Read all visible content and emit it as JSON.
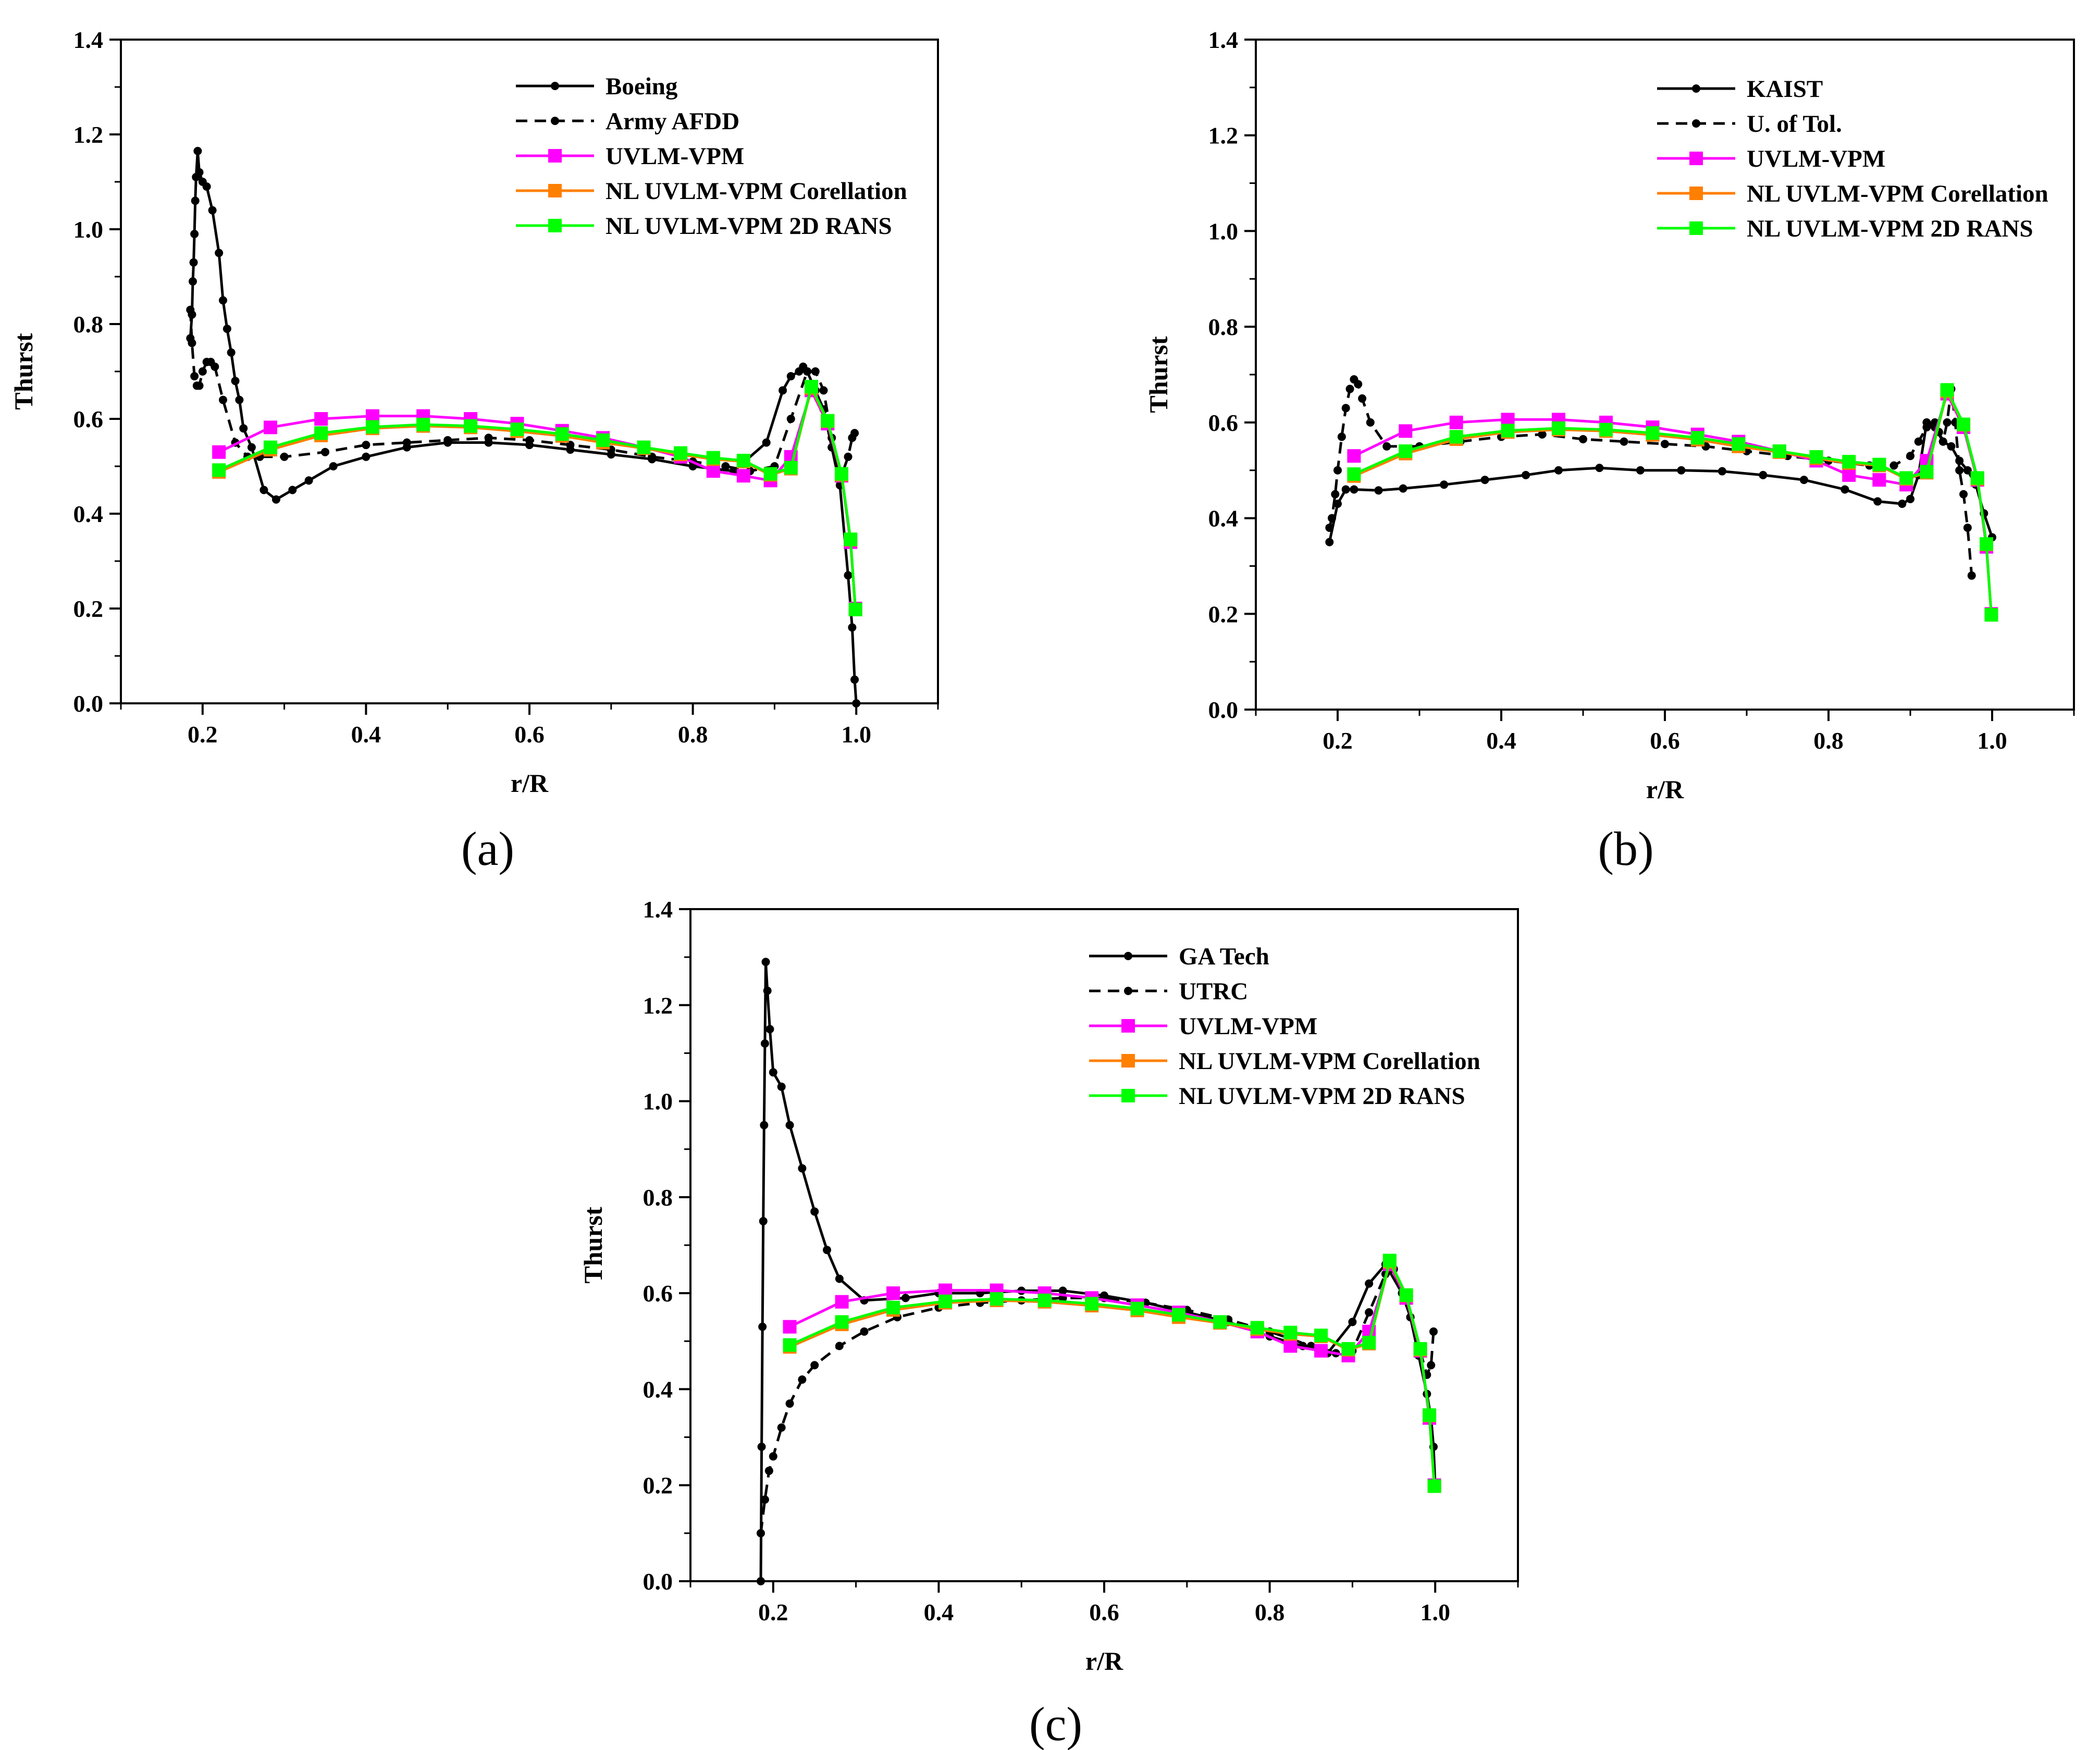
{
  "figure": {
    "panels": [
      "(a)",
      "(b)",
      "(c)"
    ]
  },
  "colors": {
    "uvlm_vpm": "#ff00ff",
    "nl_corellation": "#ff7f00",
    "nl_2d_rans": "#00ff00",
    "experimental": "#000000"
  },
  "chart_data": [
    {
      "type": "line",
      "panel_label": "(a)",
      "xlabel": "r/R",
      "ylabel": "Thurst",
      "xlim": [
        0.1,
        1.1
      ],
      "ylim": [
        0.0,
        1.4
      ],
      "xticks": [
        "0.2",
        "0.4",
        "0.6",
        "0.8",
        "1.0"
      ],
      "yticks": [
        "0.0",
        "0.2",
        "0.4",
        "0.6",
        "0.8",
        "1.0",
        "1.2",
        "1.4"
      ],
      "legend_position": "top-right",
      "series": [
        {
          "name": "Boeing",
          "style": "solid-dot",
          "color": "#000000",
          "x": [
            0.185,
            0.187,
            0.188,
            0.189,
            0.19,
            0.191,
            0.192,
            0.194,
            0.196,
            0.2,
            0.205,
            0.212,
            0.22,
            0.225,
            0.23,
            0.235,
            0.24,
            0.245,
            0.25,
            0.26,
            0.275,
            0.29,
            0.31,
            0.33,
            0.36,
            0.4,
            0.45,
            0.5,
            0.55,
            0.6,
            0.65,
            0.7,
            0.75,
            0.8,
            0.85,
            0.89,
            0.91,
            0.92,
            0.93,
            0.935,
            0.94,
            0.95,
            0.96,
            0.97,
            0.98,
            0.99,
            0.995,
            0.998,
            1.0
          ],
          "y": [
            0.77,
            0.82,
            0.89,
            0.93,
            0.99,
            1.06,
            1.11,
            1.165,
            1.12,
            1.1,
            1.09,
            1.04,
            0.95,
            0.85,
            0.79,
            0.74,
            0.68,
            0.64,
            0.58,
            0.54,
            0.45,
            0.43,
            0.45,
            0.47,
            0.5,
            0.52,
            0.54,
            0.55,
            0.55,
            0.545,
            0.535,
            0.525,
            0.515,
            0.5,
            0.49,
            0.55,
            0.66,
            0.69,
            0.7,
            0.71,
            0.7,
            0.66,
            0.62,
            0.54,
            0.46,
            0.27,
            0.16,
            0.05,
            0.0
          ]
        },
        {
          "name": "Army AFDD",
          "style": "dashed-dot",
          "color": "#000000",
          "x": [
            0.185,
            0.187,
            0.19,
            0.193,
            0.196,
            0.2,
            0.205,
            0.21,
            0.215,
            0.225,
            0.24,
            0.255,
            0.27,
            0.3,
            0.35,
            0.4,
            0.45,
            0.5,
            0.55,
            0.6,
            0.65,
            0.7,
            0.75,
            0.8,
            0.84,
            0.87,
            0.9,
            0.92,
            0.94,
            0.95,
            0.96,
            0.97,
            0.98,
            0.99,
            0.995,
            0.998
          ],
          "y": [
            0.83,
            0.76,
            0.69,
            0.67,
            0.67,
            0.7,
            0.72,
            0.72,
            0.71,
            0.64,
            0.55,
            0.52,
            0.52,
            0.52,
            0.53,
            0.545,
            0.55,
            0.555,
            0.56,
            0.555,
            0.545,
            0.535,
            0.52,
            0.51,
            0.5,
            0.49,
            0.5,
            0.6,
            0.7,
            0.7,
            0.66,
            0.56,
            0.47,
            0.52,
            0.56,
            0.57
          ]
        },
        {
          "name": "UVLM-VPM",
          "style": "square",
          "color": "#ff00ff",
          "x": [
            0.22,
            0.283,
            0.345,
            0.408,
            0.47,
            0.528,
            0.585,
            0.64,
            0.69,
            0.74,
            0.785,
            0.825,
            0.862,
            0.895,
            0.92,
            0.945,
            0.965,
            0.982,
            0.993,
            0.999
          ],
          "y": [
            0.53,
            0.582,
            0.6,
            0.606,
            0.606,
            0.6,
            0.59,
            0.575,
            0.56,
            0.54,
            0.52,
            0.49,
            0.48,
            0.47,
            0.52,
            0.66,
            0.59,
            0.48,
            0.34,
            0.2
          ]
        },
        {
          "name": "NL UVLM-VPM Corellation",
          "style": "square",
          "color": "#ff7f00",
          "x": [
            0.22,
            0.283,
            0.345,
            0.408,
            0.47,
            0.528,
            0.585,
            0.64,
            0.69,
            0.74,
            0.785,
            0.825,
            0.862,
            0.895,
            0.92,
            0.945,
            0.965,
            0.982,
            0.993,
            0.999
          ],
          "y": [
            0.488,
            0.535,
            0.565,
            0.58,
            0.585,
            0.582,
            0.574,
            0.564,
            0.55,
            0.538,
            0.525,
            0.515,
            0.51,
            0.482,
            0.495,
            0.665,
            0.595,
            0.482,
            0.345,
            0.198
          ]
        },
        {
          "name": "NL UVLM-VPM 2D RANS",
          "style": "square",
          "color": "#00ff00",
          "x": [
            0.22,
            0.283,
            0.345,
            0.408,
            0.47,
            0.528,
            0.585,
            0.64,
            0.69,
            0.74,
            0.785,
            0.825,
            0.862,
            0.895,
            0.92,
            0.945,
            0.965,
            0.982,
            0.993,
            0.999
          ],
          "y": [
            0.492,
            0.54,
            0.57,
            0.583,
            0.588,
            0.585,
            0.578,
            0.568,
            0.555,
            0.54,
            0.528,
            0.518,
            0.512,
            0.484,
            0.497,
            0.668,
            0.596,
            0.484,
            0.346,
            0.198
          ]
        }
      ]
    },
    {
      "type": "line",
      "panel_label": "(b)",
      "xlabel": "r/R",
      "ylabel": "Thurst",
      "xlim": [
        0.1,
        1.1
      ],
      "ylim": [
        0.0,
        1.4
      ],
      "xticks": [
        "0.2",
        "0.4",
        "0.6",
        "0.8",
        "1.0"
      ],
      "yticks": [
        "0.0",
        "0.2",
        "0.4",
        "0.6",
        "0.8",
        "1.0",
        "1.2",
        "1.4"
      ],
      "legend_position": "top-right",
      "series": [
        {
          "name": "KAIST",
          "style": "solid-dot",
          "color": "#000000",
          "x": [
            0.19,
            0.2,
            0.21,
            0.22,
            0.25,
            0.28,
            0.33,
            0.38,
            0.43,
            0.47,
            0.52,
            0.57,
            0.62,
            0.67,
            0.72,
            0.77,
            0.82,
            0.86,
            0.89,
            0.9,
            0.91,
            0.92,
            0.93,
            0.94,
            0.95,
            0.96,
            0.97,
            0.98,
            0.99,
            1.0
          ],
          "y": [
            0.35,
            0.43,
            0.46,
            0.46,
            0.458,
            0.462,
            0.47,
            0.48,
            0.49,
            0.5,
            0.505,
            0.5,
            0.5,
            0.498,
            0.49,
            0.48,
            0.46,
            0.435,
            0.43,
            0.44,
            0.49,
            0.6,
            0.59,
            0.56,
            0.55,
            0.52,
            0.5,
            0.47,
            0.41,
            0.36
          ]
        },
        {
          "name": "U. of Tol.",
          "style": "dashed-dot",
          "color": "#000000",
          "x": [
            0.19,
            0.193,
            0.197,
            0.2,
            0.205,
            0.21,
            0.215,
            0.22,
            0.225,
            0.23,
            0.24,
            0.26,
            0.3,
            0.35,
            0.4,
            0.45,
            0.5,
            0.55,
            0.6,
            0.65,
            0.7,
            0.75,
            0.8,
            0.85,
            0.88,
            0.9,
            0.91,
            0.92,
            0.93,
            0.935,
            0.94,
            0.945,
            0.95,
            0.955,
            0.96,
            0.965,
            0.97,
            0.975
          ],
          "y": [
            0.38,
            0.4,
            0.45,
            0.5,
            0.57,
            0.63,
            0.67,
            0.69,
            0.68,
            0.65,
            0.6,
            0.55,
            0.55,
            0.56,
            0.57,
            0.575,
            0.565,
            0.56,
            0.555,
            0.55,
            0.54,
            0.53,
            0.52,
            0.51,
            0.51,
            0.53,
            0.56,
            0.59,
            0.6,
            0.58,
            0.56,
            0.6,
            0.67,
            0.6,
            0.5,
            0.45,
            0.38,
            0.28
          ]
        },
        {
          "name": "UVLM-VPM",
          "style": "square",
          "color": "#ff00ff",
          "x": [
            0.22,
            0.283,
            0.345,
            0.408,
            0.47,
            0.528,
            0.585,
            0.64,
            0.69,
            0.74,
            0.785,
            0.825,
            0.862,
            0.895,
            0.92,
            0.945,
            0.965,
            0.982,
            0.993,
            0.999
          ],
          "y": [
            0.53,
            0.582,
            0.6,
            0.606,
            0.606,
            0.6,
            0.59,
            0.575,
            0.56,
            0.54,
            0.52,
            0.49,
            0.48,
            0.47,
            0.52,
            0.66,
            0.59,
            0.48,
            0.34,
            0.2
          ]
        },
        {
          "name": "NL UVLM-VPM Corellation",
          "style": "square",
          "color": "#ff7f00",
          "x": [
            0.22,
            0.283,
            0.345,
            0.408,
            0.47,
            0.528,
            0.585,
            0.64,
            0.69,
            0.74,
            0.785,
            0.825,
            0.862,
            0.895,
            0.92,
            0.945,
            0.965,
            0.982,
            0.993,
            0.999
          ],
          "y": [
            0.488,
            0.535,
            0.565,
            0.58,
            0.585,
            0.582,
            0.574,
            0.564,
            0.55,
            0.538,
            0.525,
            0.515,
            0.51,
            0.482,
            0.495,
            0.665,
            0.595,
            0.482,
            0.345,
            0.198
          ]
        },
        {
          "name": "NL UVLM-VPM 2D RANS",
          "style": "square",
          "color": "#00ff00",
          "x": [
            0.22,
            0.283,
            0.345,
            0.408,
            0.47,
            0.528,
            0.585,
            0.64,
            0.69,
            0.74,
            0.785,
            0.825,
            0.862,
            0.895,
            0.92,
            0.945,
            0.965,
            0.982,
            0.993,
            0.999
          ],
          "y": [
            0.492,
            0.54,
            0.57,
            0.583,
            0.588,
            0.585,
            0.578,
            0.568,
            0.555,
            0.54,
            0.528,
            0.518,
            0.512,
            0.484,
            0.497,
            0.668,
            0.596,
            0.484,
            0.346,
            0.198
          ]
        }
      ]
    },
    {
      "type": "line",
      "panel_label": "(c)",
      "xlabel": "r/R",
      "ylabel": "Thurst",
      "xlim": [
        0.1,
        1.1
      ],
      "ylim": [
        0.0,
        1.4
      ],
      "xticks": [
        "0.2",
        "0.4",
        "0.6",
        "0.8",
        "1.0"
      ],
      "yticks": [
        "0.0",
        "0.2",
        "0.4",
        "0.6",
        "0.8",
        "1.0",
        "1.2",
        "1.4"
      ],
      "legend_position": "top-right",
      "series": [
        {
          "name": "GA Tech",
          "style": "solid-dot",
          "color": "#000000",
          "x": [
            0.185,
            0.186,
            0.187,
            0.188,
            0.189,
            0.19,
            0.191,
            0.193,
            0.196,
            0.2,
            0.21,
            0.22,
            0.235,
            0.25,
            0.265,
            0.28,
            0.31,
            0.36,
            0.4,
            0.45,
            0.5,
            0.55,
            0.6,
            0.65,
            0.7,
            0.75,
            0.8,
            0.84,
            0.87,
            0.9,
            0.92,
            0.94,
            0.96,
            0.97,
            0.98,
            0.99,
            0.995,
            0.998,
            1.0
          ],
          "y": [
            0.0,
            0.28,
            0.53,
            0.75,
            0.95,
            1.12,
            1.29,
            1.23,
            1.15,
            1.06,
            1.03,
            0.95,
            0.86,
            0.77,
            0.69,
            0.63,
            0.585,
            0.59,
            0.6,
            0.6,
            0.605,
            0.605,
            0.595,
            0.58,
            0.56,
            0.54,
            0.51,
            0.49,
            0.475,
            0.54,
            0.62,
            0.66,
            0.6,
            0.55,
            0.47,
            0.39,
            0.34,
            0.28,
            0.2
          ]
        },
        {
          "name": "UTRC",
          "style": "dashed-dot",
          "color": "#000000",
          "x": [
            0.185,
            0.19,
            0.195,
            0.2,
            0.21,
            0.22,
            0.235,
            0.25,
            0.28,
            0.31,
            0.35,
            0.4,
            0.45,
            0.5,
            0.55,
            0.6,
            0.65,
            0.7,
            0.75,
            0.8,
            0.85,
            0.88,
            0.9,
            0.92,
            0.94,
            0.95,
            0.96,
            0.97,
            0.98,
            0.99,
            0.995,
            0.998
          ],
          "y": [
            0.1,
            0.17,
            0.23,
            0.26,
            0.32,
            0.37,
            0.42,
            0.45,
            0.49,
            0.52,
            0.55,
            0.57,
            0.58,
            0.585,
            0.59,
            0.59,
            0.58,
            0.565,
            0.545,
            0.52,
            0.49,
            0.475,
            0.48,
            0.56,
            0.64,
            0.65,
            0.6,
            0.55,
            0.49,
            0.43,
            0.45,
            0.52
          ]
        },
        {
          "name": "UVLM-VPM",
          "style": "square",
          "color": "#ff00ff",
          "x": [
            0.22,
            0.283,
            0.345,
            0.408,
            0.47,
            0.528,
            0.585,
            0.64,
            0.69,
            0.74,
            0.785,
            0.825,
            0.862,
            0.895,
            0.92,
            0.945,
            0.965,
            0.982,
            0.993,
            0.999
          ],
          "y": [
            0.53,
            0.582,
            0.6,
            0.606,
            0.606,
            0.6,
            0.59,
            0.575,
            0.56,
            0.54,
            0.52,
            0.49,
            0.48,
            0.47,
            0.52,
            0.66,
            0.59,
            0.48,
            0.34,
            0.2
          ]
        },
        {
          "name": "NL UVLM-VPM Corellation",
          "style": "square",
          "color": "#ff7f00",
          "x": [
            0.22,
            0.283,
            0.345,
            0.408,
            0.47,
            0.528,
            0.585,
            0.64,
            0.69,
            0.74,
            0.785,
            0.825,
            0.862,
            0.895,
            0.92,
            0.945,
            0.965,
            0.982,
            0.993,
            0.999
          ],
          "y": [
            0.488,
            0.535,
            0.565,
            0.58,
            0.585,
            0.582,
            0.574,
            0.564,
            0.55,
            0.538,
            0.525,
            0.515,
            0.51,
            0.482,
            0.495,
            0.665,
            0.595,
            0.482,
            0.345,
            0.198
          ]
        },
        {
          "name": "NL UVLM-VPM 2D RANS",
          "style": "square",
          "color": "#00ff00",
          "x": [
            0.22,
            0.283,
            0.345,
            0.408,
            0.47,
            0.528,
            0.585,
            0.64,
            0.69,
            0.74,
            0.785,
            0.825,
            0.862,
            0.895,
            0.92,
            0.945,
            0.965,
            0.982,
            0.993,
            0.999
          ],
          "y": [
            0.492,
            0.54,
            0.57,
            0.583,
            0.588,
            0.585,
            0.578,
            0.568,
            0.555,
            0.54,
            0.528,
            0.518,
            0.512,
            0.484,
            0.497,
            0.668,
            0.596,
            0.484,
            0.346,
            0.198
          ]
        }
      ]
    }
  ]
}
